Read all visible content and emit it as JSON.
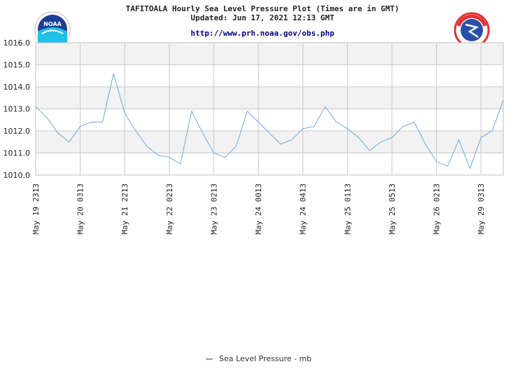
{
  "header": {
    "title": "TAFITOALA Hourly Sea Level Pressure Plot (Times are in GMT)",
    "updated": "Updated: Jun 17, 2021 12:13 GMT",
    "url": "http://www.prh.noaa.gov/obs.php",
    "noaa_logo_text": "NOAA",
    "nws_logo_text": "NATIONAL WEATHER SERVICE"
  },
  "colors": {
    "series": "#6fa8dc",
    "band": "#f2f2f2",
    "grid": "#c8c8c8"
  },
  "chart_data": {
    "type": "line",
    "title": "TAFITOALA Hourly Sea Level Pressure Plot (Times are in GMT)",
    "ylim": [
      1010.0,
      1016.0
    ],
    "yticks": [
      "1016.0",
      "1015.0",
      "1014.0",
      "1013.0",
      "1012.0",
      "1011.0",
      "1010.0"
    ],
    "xticks": [
      "May 19 2313",
      "May 20 0313",
      "May 21 2213",
      "May 22 0213",
      "May 23 0213",
      "May 24 0013",
      "May 24 0413",
      "May 25 0113",
      "May 25 0513",
      "May 26 0213",
      "May 29 0313"
    ],
    "grid": true,
    "legend_position": "bottom",
    "series": [
      {
        "name": "Sea Level Pressure - mb",
        "values": [
          1013.1,
          1012.6,
          1011.9,
          1011.5,
          1012.2,
          1012.4,
          1012.4,
          1014.6,
          1012.8,
          1012.0,
          1011.3,
          1010.9,
          1010.8,
          1010.5,
          1012.9,
          1011.9,
          1011.0,
          1010.8,
          1011.3,
          1012.9,
          1012.4,
          1011.9,
          1011.4,
          1011.6,
          1012.1,
          1012.2,
          1013.1,
          1012.4,
          1012.1,
          1011.7,
          1011.1,
          1011.5,
          1011.7,
          1012.2,
          1012.4,
          1011.4,
          1010.6,
          1010.4,
          1011.6,
          1010.3,
          1011.7,
          1012.0,
          1013.4
        ]
      }
    ]
  }
}
